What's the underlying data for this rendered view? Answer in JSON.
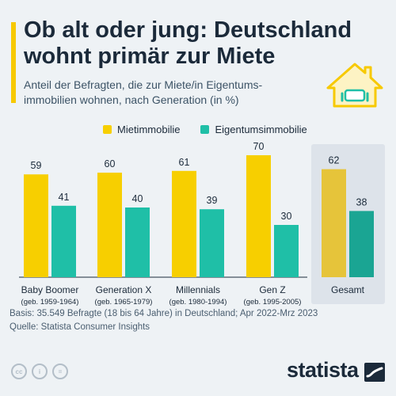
{
  "header": {
    "title_line1": "Ob alt oder jung: Deutschland",
    "title_line2": "wohnt primär zur Miete",
    "subtitle_line1": "Anteil der Befragten, die zur Miete/in Eigentums-",
    "subtitle_line2": "immobilien wohnen, nach Generation (in %)"
  },
  "colors": {
    "miete": "#f7cf00",
    "eigentum": "#1fbfa7",
    "gesamt_miete": "#e6c43a",
    "gesamt_eigentum": "#1aa593",
    "highlight_bg": "#dde3ea"
  },
  "icons": {
    "house": "house-with-sofa-icon",
    "brand": "statista-logo-icon"
  },
  "chart_data": {
    "type": "bar",
    "title": "Ob alt oder jung: Deutschland wohnt primär zur Miete",
    "categories": [
      "Baby Boomer",
      "Generation X",
      "Millennials",
      "Gen Z",
      "Gesamt"
    ],
    "category_sublabels": [
      "(geb. 1959-1964)",
      "(geb. 1965-1979)",
      "(geb. 1980-1994)",
      "(geb. 1995-2005)",
      ""
    ],
    "series": [
      {
        "name": "Mietimmobilie",
        "values": [
          59,
          60,
          61,
          70,
          62
        ]
      },
      {
        "name": "Eigentumsimmobilie",
        "values": [
          41,
          40,
          39,
          30,
          38
        ]
      }
    ],
    "ylim": [
      0,
      70
    ],
    "grid": false,
    "legend_position": "top",
    "highlighted_category": "Gesamt"
  },
  "footer": {
    "basis": "Basis: 35.549 Befragte (18 bis 64 Jahre) in Deutschland; Apr 2022-Mrz 2023",
    "source": "Quelle: Statista Consumer Insights",
    "brand": "statista"
  }
}
